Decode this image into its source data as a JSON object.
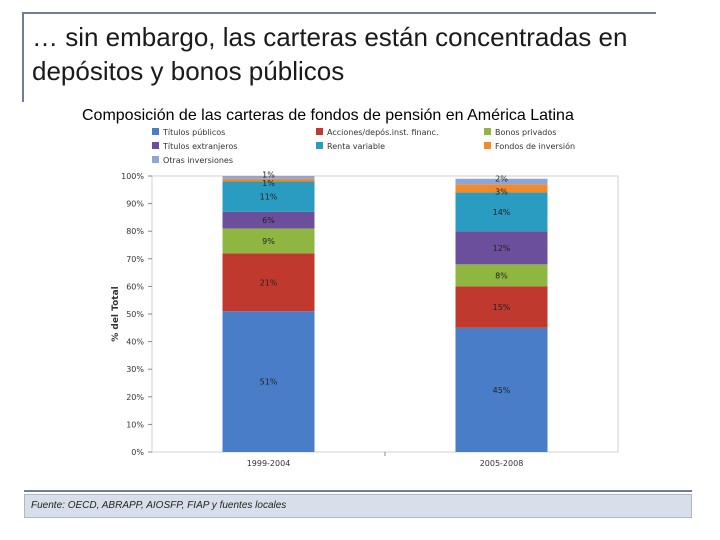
{
  "slide": {
    "title": "… sin embargo, las carteras están concentradas en depósitos y bonos públicos"
  },
  "chart_data": {
    "type": "stacked-bar",
    "title": "Composición de las carteras de fondos de pensión en América Latina",
    "ylabel": "% del Total",
    "xlabel": "",
    "ylim": [
      0,
      100
    ],
    "yticks": [
      "0%",
      "10%",
      "20%",
      "30%",
      "40%",
      "50%",
      "60%",
      "70%",
      "80%",
      "90%",
      "100%"
    ],
    "categories": [
      "1999-2004",
      "2005-2008"
    ],
    "legend_placement": "top",
    "series": [
      {
        "name": "Títulos públicos",
        "color": "#4a7dc8",
        "values": [
          51,
          45
        ],
        "labels": [
          "51%",
          "45%"
        ]
      },
      {
        "name": "Acciones/depós.inst. financ.",
        "color": "#c0392f",
        "values": [
          21,
          15
        ],
        "labels": [
          "21%",
          "15%"
        ]
      },
      {
        "name": "Bonos privados",
        "color": "#8fb640",
        "values": [
          9,
          8
        ],
        "labels": [
          "9%",
          "8%"
        ]
      },
      {
        "name": "Títulos extranjeros",
        "color": "#6b4f9c",
        "values": [
          6,
          12
        ],
        "labels": [
          "6%",
          "12%"
        ]
      },
      {
        "name": "Renta variable",
        "color": "#2a9bc1",
        "values": [
          11,
          14
        ],
        "labels": [
          "11%",
          "14%"
        ]
      },
      {
        "name": "Fondos de inversión",
        "color": "#f08a2a",
        "values": [
          1,
          3
        ],
        "labels": [
          "1%",
          "3%"
        ]
      },
      {
        "name": "Otras inversiones",
        "color": "#8ea6d6",
        "values": [
          1,
          2
        ],
        "labels": [
          "1%",
          "2%"
        ]
      }
    ]
  },
  "footer": {
    "source": "Fuente: OECD, ABRAPP, AIOSFP, FIAP y fuentes locales"
  }
}
